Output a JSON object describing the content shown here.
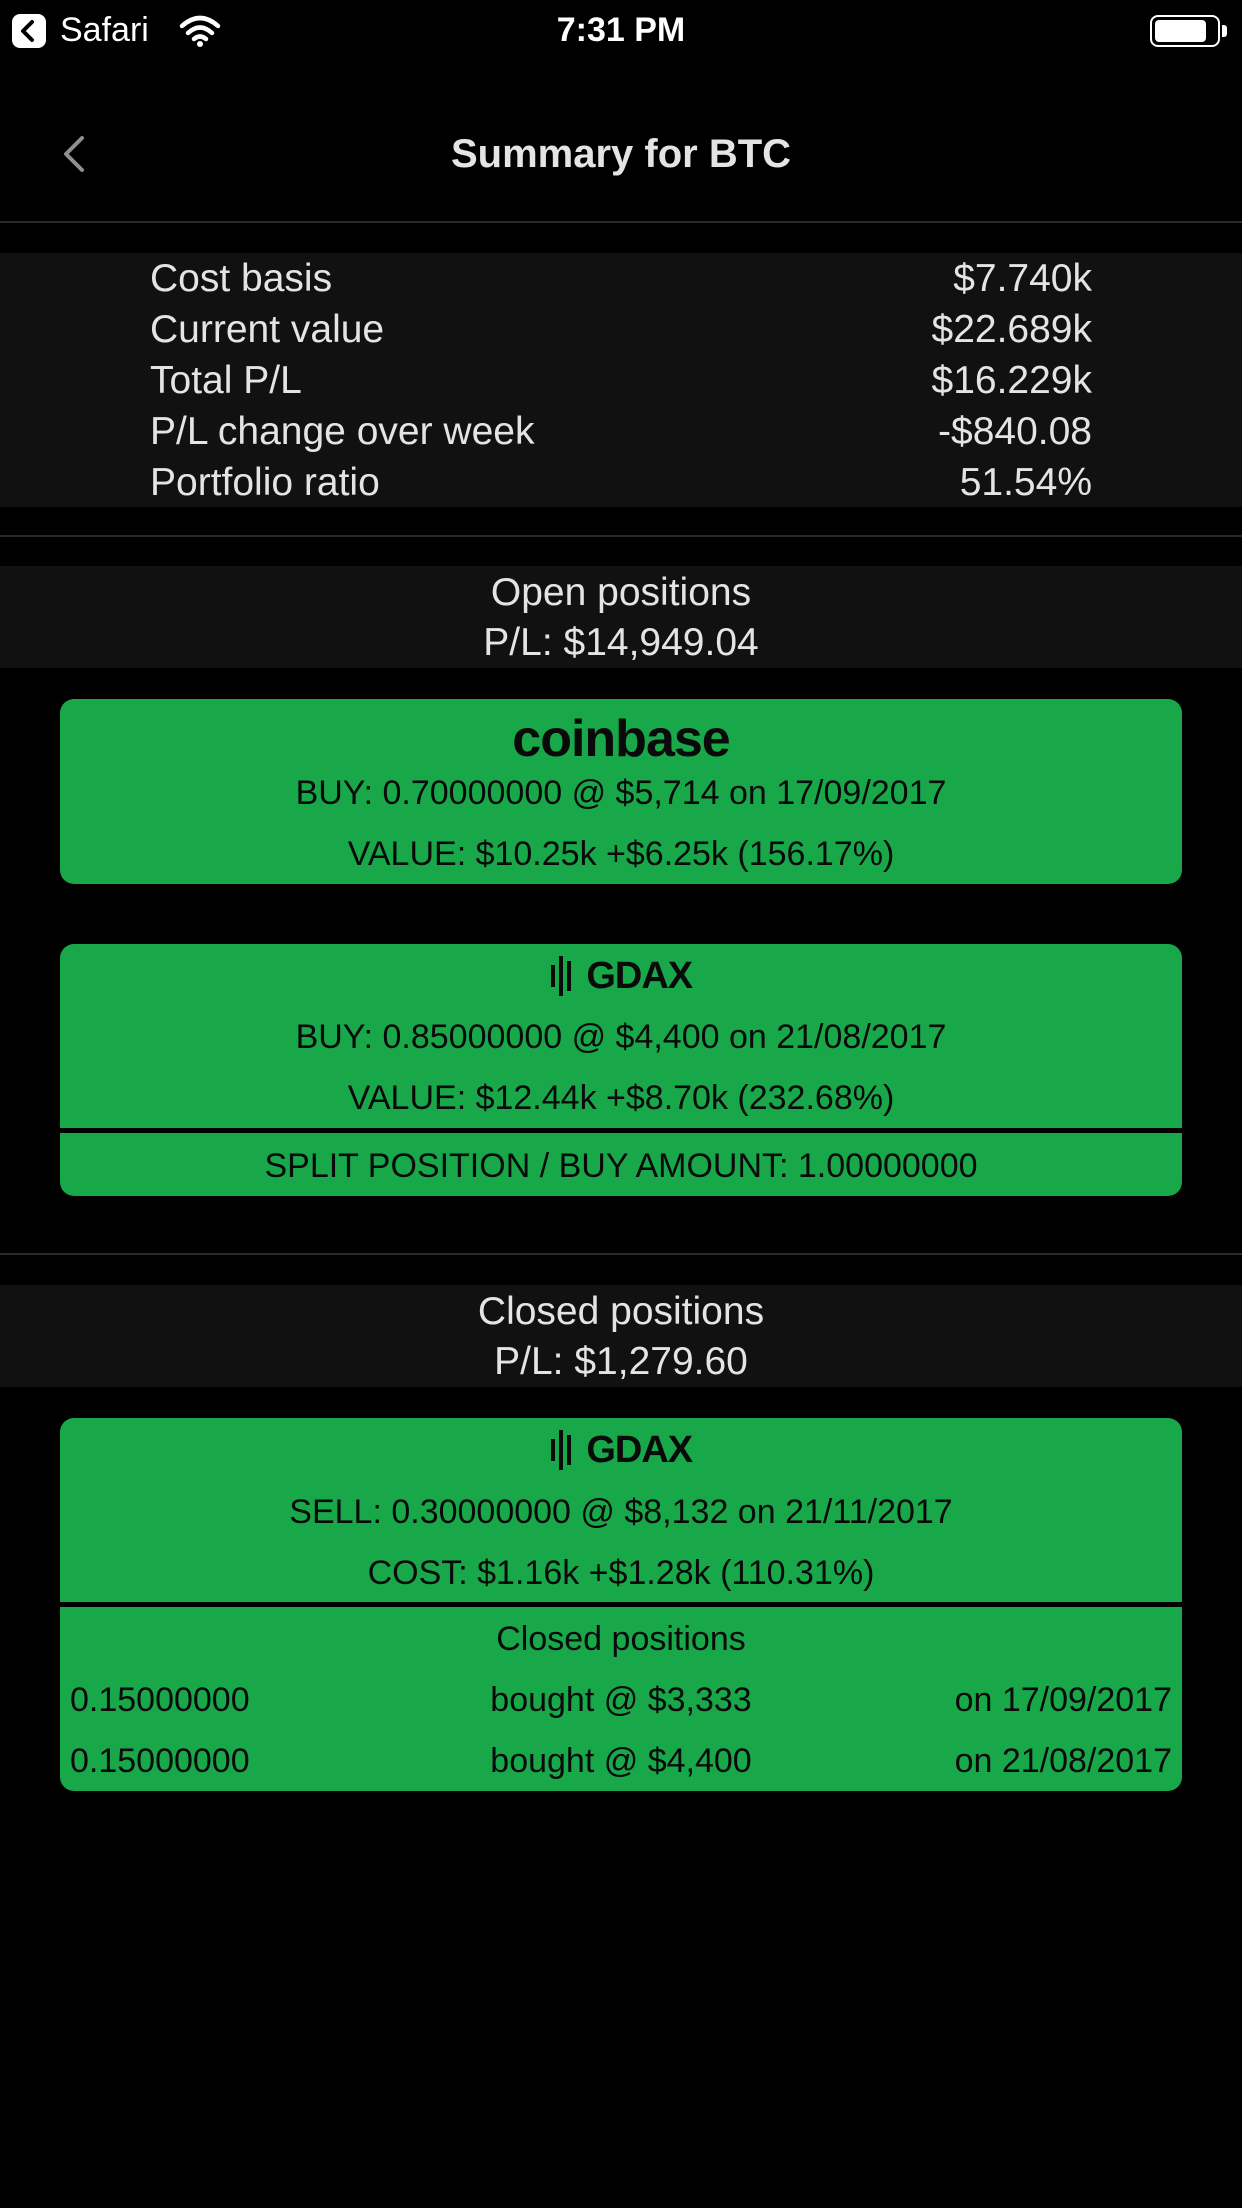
{
  "status_bar": {
    "app": "Safari",
    "time": "7:31 PM",
    "battery_level": 0.85
  },
  "nav": {
    "title": "Summary for BTC"
  },
  "summary": {
    "rows": [
      {
        "label": "Cost basis",
        "value": "$7.740k"
      },
      {
        "label": "Current value",
        "value": "$22.689k"
      },
      {
        "label": "Total P/L",
        "value": "$16.229k"
      },
      {
        "label": "P/L change over week",
        "value": "-$840.08"
      },
      {
        "label": "Portfolio ratio",
        "value": "51.54%"
      }
    ]
  },
  "open_positions": {
    "title": "Open positions",
    "pl": "P/L: $14,949.04",
    "cards": [
      {
        "exchange": "coinbase",
        "trade": "BUY: 0.70000000  @ $5,714  on 17/09/2017",
        "value": "VALUE: $10.25k  +$6.25k (156.17%)"
      },
      {
        "exchange": "GDAX",
        "trade": "BUY: 0.85000000  @ $4,400  on 21/08/2017",
        "value": "VALUE: $12.44k  +$8.70k (232.68%)",
        "split": "SPLIT POSITION / BUY AMOUNT: 1.00000000"
      }
    ]
  },
  "closed_positions": {
    "title": "Closed positions",
    "pl": "P/L: $1,279.60",
    "cards": [
      {
        "exchange": "GDAX",
        "trade": "SELL: 0.30000000  @ $8,132  on 21/11/2017",
        "cost": "COST: $1.16k  +$1.28k (110.31%)",
        "history_title": "Closed positions",
        "history": [
          {
            "amount": "0.15000000",
            "price": "bought @ $3,333",
            "date": "on 17/09/2017"
          },
          {
            "amount": "0.15000000",
            "price": "bought @ $4,400",
            "date": "on 21/08/2017"
          }
        ]
      }
    ]
  },
  "colors": {
    "background": "#000000",
    "panel": "#111112",
    "card_green": "#18a84a",
    "text": "#e4e4e6"
  },
  "icons": {
    "status_back": "back-to-app-icon",
    "wifi": "wifi-icon",
    "battery": "battery-icon",
    "nav_back": "chevron-left-icon"
  }
}
